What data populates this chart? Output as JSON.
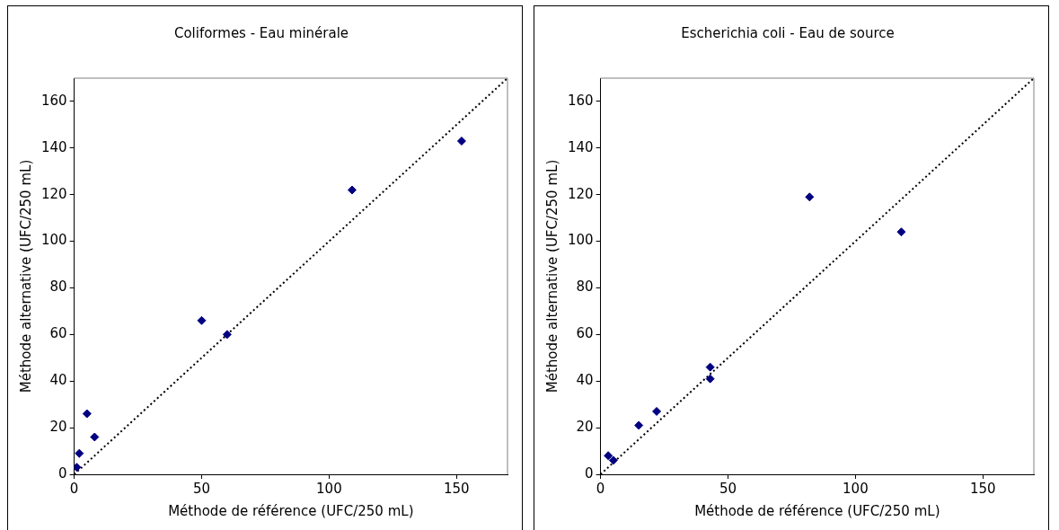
{
  "chart_data": [
    {
      "type": "scatter",
      "title": "Coliformes - Eau minérale",
      "xlabel": "Méthode de référence (UFC/250 mL)",
      "ylabel": "Méthode alternative (UFC/250 mL)",
      "xlim": [
        0,
        170
      ],
      "ylim": [
        0,
        170
      ],
      "xticks": [
        0,
        50,
        100,
        150
      ],
      "yticks": [
        0,
        20,
        40,
        60,
        80,
        100,
        120,
        140,
        160
      ],
      "grid": false,
      "legend": false,
      "series": [
        {
          "color": "#000080",
          "marker": "diamond",
          "x": [
            1,
            2,
            5,
            8,
            50,
            60,
            109,
            152
          ],
          "values": [
            3,
            9,
            26,
            16,
            66,
            60,
            122,
            143
          ]
        },
        {
          "type": "line",
          "color": "#000000",
          "marker": "none",
          "line_style": "dotted",
          "x": [
            0,
            170
          ],
          "values": [
            0,
            170
          ]
        }
      ]
    },
    {
      "type": "scatter",
      "title": "Escherichia coli - Eau de source",
      "xlabel": "Méthode de référence (UFC/250 mL)",
      "ylabel": "Méthode alternative (UFC/250 mL)",
      "xlim": [
        0,
        170
      ],
      "ylim": [
        0,
        170
      ],
      "xticks": [
        0,
        50,
        100,
        150
      ],
      "yticks": [
        0,
        20,
        40,
        60,
        80,
        100,
        120,
        140,
        160
      ],
      "grid": false,
      "legend": false,
      "series": [
        {
          "color": "#000080",
          "marker": "diamond",
          "x": [
            3,
            5,
            15,
            22,
            43,
            43,
            82,
            118
          ],
          "values": [
            8,
            6,
            21,
            27,
            41,
            46,
            119,
            104
          ]
        },
        {
          "type": "line",
          "color": "#000000",
          "marker": "none",
          "line_style": "dotted",
          "x": [
            0,
            170
          ],
          "values": [
            0,
            170
          ]
        }
      ]
    }
  ]
}
